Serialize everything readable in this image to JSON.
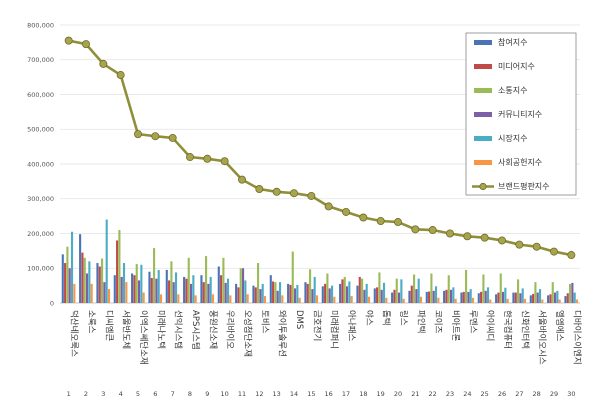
{
  "chart_data": {
    "type": "bar",
    "ylim": [
      0,
      800000
    ],
    "yticks": [
      0,
      100000,
      200000,
      300000,
      400000,
      500000,
      600000,
      700000,
      800000
    ],
    "ytick_labels": [
      "0",
      "100,000",
      "200,000",
      "300,000",
      "400,000",
      "500,000",
      "600,000",
      "700,000",
      "800,000"
    ],
    "grid": true,
    "legend_position": "top-right",
    "categories": [
      "덕산네오룩스",
      "소룩스",
      "디씨엠큰",
      "서울반도체",
      "이엑스쎄단소재",
      "미래나노텍",
      "선익시스템",
      "APS시스템",
      "풍원신소재",
      "우리바이오",
      "오성첨단소재",
      "토비스",
      "와이투솔루션",
      "DMS",
      "금호전기",
      "미래컴퍼니",
      "아나패스",
      "야스",
      "톱텍",
      "링스",
      "파인텍",
      "코이즈",
      "비아트론",
      "루멘스",
      "아이씨디",
      "한국컴퓨터",
      "신화인터텍",
      "서울바이오시스",
      "엘엠에스",
      "디바이스이엔지"
    ],
    "ranks": [
      "1",
      "2",
      "3",
      "4",
      "5",
      "6",
      "7",
      "8",
      "9",
      "10",
      "11",
      "12",
      "13",
      "14",
      "15",
      "16",
      "17",
      "18",
      "19",
      "20",
      "21",
      "22",
      "23",
      "24",
      "25",
      "26",
      "27",
      "28",
      "29",
      "30"
    ],
    "series": [
      {
        "name": "참여지수",
        "color": "#4a73b8",
        "values": [
          140000,
          198000,
          115000,
          80000,
          85000,
          90000,
          95000,
          75000,
          80000,
          105000,
          55000,
          50000,
          80000,
          55000,
          60000,
          48000,
          55000,
          50000,
          42000,
          30000,
          35000,
          32000,
          35000,
          30000,
          28000,
          25000,
          30000,
          22000,
          22000,
          20000
        ]
      },
      {
        "name": "미디어지수",
        "color": "#c04a48",
        "values": [
          115000,
          145000,
          105000,
          180000,
          80000,
          72000,
          65000,
          70000,
          60000,
          80000,
          45000,
          45000,
          62000,
          52000,
          55000,
          55000,
          68000,
          75000,
          45000,
          38000,
          50000,
          33000,
          38000,
          32000,
          32000,
          30000,
          30000,
          26000,
          25000,
          28000
        ]
      },
      {
        "name": "소통지수",
        "color": "#9bbb59",
        "values": [
          162000,
          130000,
          128000,
          210000,
          112000,
          158000,
          120000,
          130000,
          135000,
          130000,
          100000,
          115000,
          60000,
          148000,
          97000,
          85000,
          75000,
          70000,
          88000,
          70000,
          82000,
          85000,
          80000,
          95000,
          82000,
          85000,
          68000,
          60000,
          60000,
          55000
        ]
      },
      {
        "name": "커뮤니티지수",
        "color": "#7d5fa8",
        "values": [
          100000,
          85000,
          60000,
          75000,
          65000,
          70000,
          60000,
          55000,
          55000,
          58000,
          100000,
          40000,
          35000,
          42000,
          40000,
          42000,
          48000,
          38000,
          38000,
          30000,
          40000,
          35000,
          38000,
          32000,
          35000,
          32000,
          28000,
          30000,
          30000,
          58000
        ]
      },
      {
        "name": "시장지수",
        "color": "#4bacc6",
        "values": [
          205000,
          120000,
          240000,
          115000,
          110000,
          95000,
          88000,
          80000,
          75000,
          70000,
          65000,
          55000,
          60000,
          52000,
          75000,
          50000,
          62000,
          55000,
          58000,
          68000,
          70000,
          48000,
          45000,
          40000,
          45000,
          44000,
          42000,
          40000,
          35000,
          30000
        ]
      },
      {
        "name": "사회공헌지수",
        "color": "#f79646",
        "values": [
          55000,
          55000,
          40000,
          60000,
          30000,
          25000,
          25000,
          22000,
          25000,
          22000,
          25000,
          20000,
          22000,
          15000,
          22000,
          18000,
          20000,
          18000,
          15000,
          12000,
          18000,
          15000,
          12000,
          15000,
          10000,
          12000,
          12000,
          10000,
          10000,
          10000
        ]
      }
    ],
    "line": {
      "name": "브랜드평판지수",
      "color": "#8f8f3a",
      "values": [
        755000,
        745000,
        688000,
        656000,
        486000,
        480000,
        475000,
        420000,
        415000,
        408000,
        355000,
        328000,
        320000,
        316000,
        308000,
        278000,
        262000,
        246000,
        236000,
        233000,
        212000,
        210000,
        200000,
        192000,
        188000,
        180000,
        168000,
        162000,
        148000,
        138000
      ]
    }
  }
}
